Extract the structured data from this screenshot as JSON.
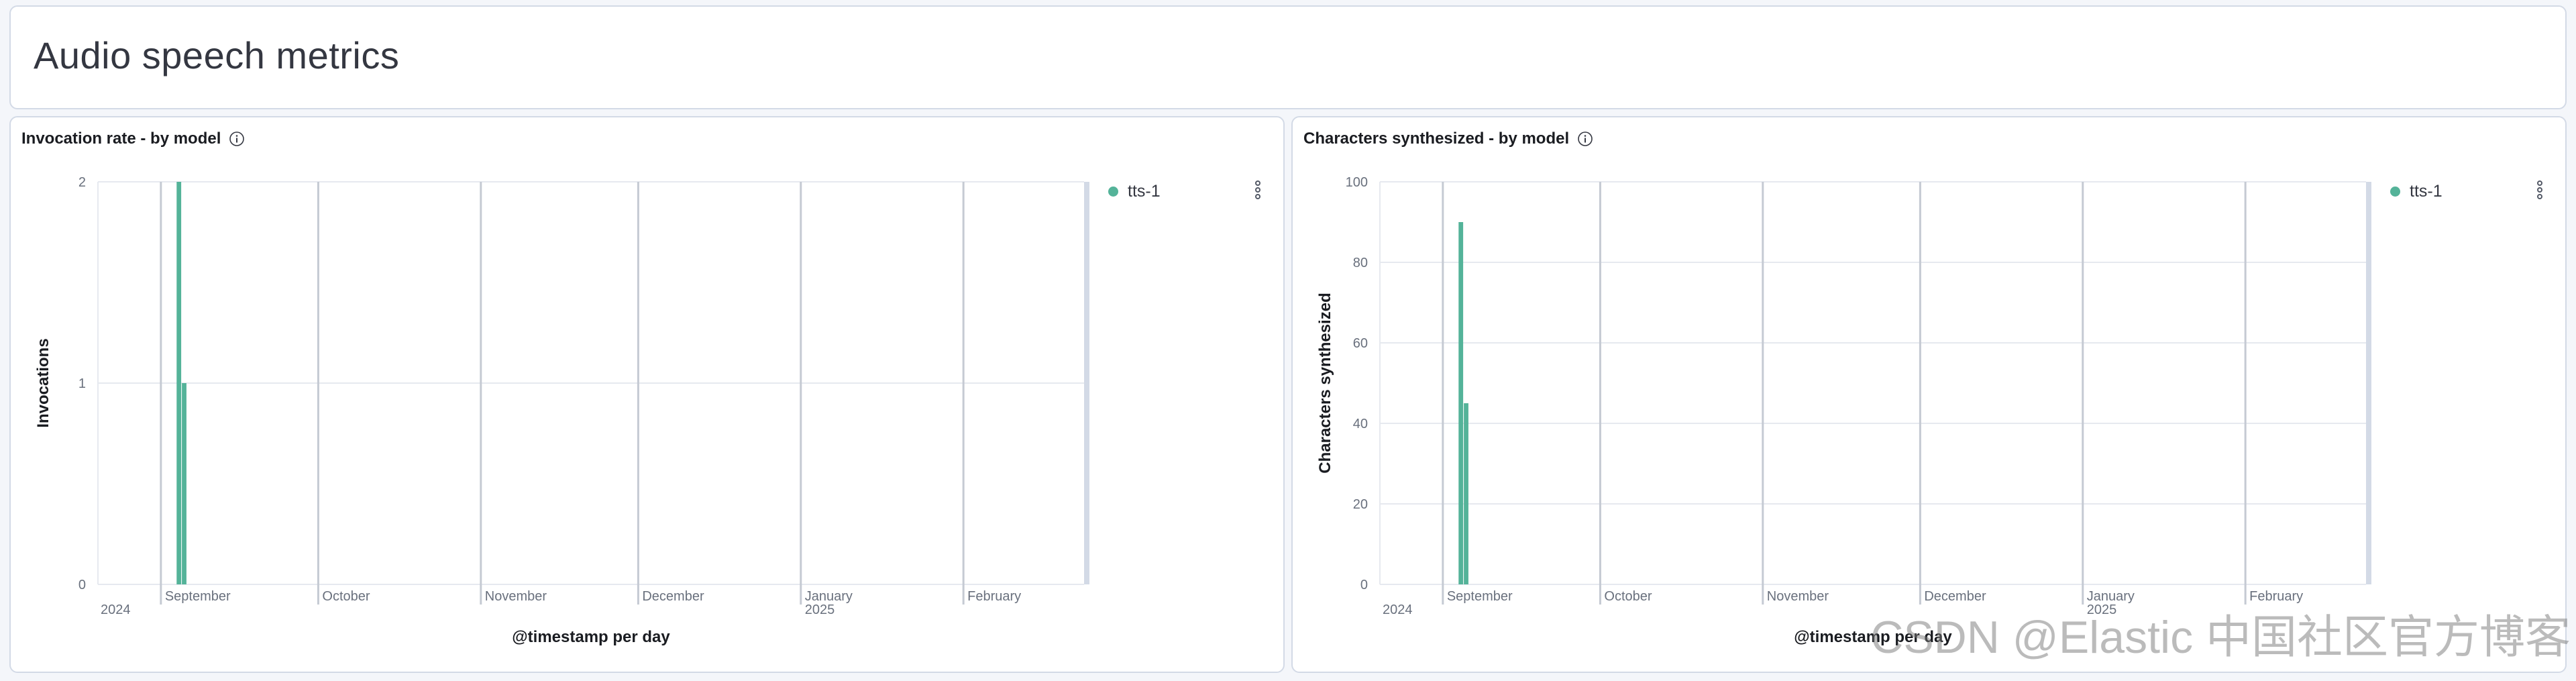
{
  "page": {
    "title": "Audio speech metrics"
  },
  "watermark": "CSDN @Elastic 中国社区官方博客",
  "colors": {
    "series": "#54b399",
    "grid": "#e6e9ef",
    "axis": "#c5cad3",
    "text": "#69707d"
  },
  "icons": {
    "info": "info-icon",
    "legend_menu": "vertical-dots-icon"
  },
  "chart_data": [
    {
      "type": "bar",
      "title": "Invocation rate - by model",
      "xlabel": "@timestamp per day",
      "ylabel": "Invocations",
      "ylim": [
        0,
        2
      ],
      "yticks": [
        0,
        1,
        2
      ],
      "x_ticks": [
        {
          "label": "September",
          "date": "2024-09-01"
        },
        {
          "label": "October",
          "date": "2024-10-01"
        },
        {
          "label": "November",
          "date": "2024-11-01"
        },
        {
          "label": "December",
          "date": "2024-12-01"
        },
        {
          "label": "January",
          "sublabel": "2025",
          "date": "2025-01-01"
        },
        {
          "label": "February",
          "date": "2025-02-01"
        }
      ],
      "x_year_label": "2024",
      "xlim": [
        "2024-08-20",
        "2025-02-24"
      ],
      "series": [
        {
          "name": "tts-1",
          "points": [
            {
              "x": "2024-09-04",
              "y": 2
            },
            {
              "x": "2024-09-05",
              "y": 1
            }
          ]
        }
      ],
      "grid": true,
      "legend": "top-right"
    },
    {
      "type": "bar",
      "title": "Characters synthesized - by model",
      "xlabel": "@timestamp per day",
      "ylabel": "Characters synthesized",
      "ylim": [
        0,
        100
      ],
      "yticks": [
        0,
        20,
        40,
        60,
        80,
        100
      ],
      "x_ticks": [
        {
          "label": "September",
          "date": "2024-09-01"
        },
        {
          "label": "October",
          "date": "2024-10-01"
        },
        {
          "label": "November",
          "date": "2024-11-01"
        },
        {
          "label": "December",
          "date": "2024-12-01"
        },
        {
          "label": "January",
          "sublabel": "2025",
          "date": "2025-01-01"
        },
        {
          "label": "February",
          "date": "2025-02-01"
        }
      ],
      "x_year_label": "2024",
      "xlim": [
        "2024-08-20",
        "2025-02-24"
      ],
      "series": [
        {
          "name": "tts-1",
          "points": [
            {
              "x": "2024-09-04",
              "y": 90
            },
            {
              "x": "2024-09-05",
              "y": 45
            }
          ]
        }
      ],
      "grid": true,
      "legend": "top-right"
    }
  ]
}
